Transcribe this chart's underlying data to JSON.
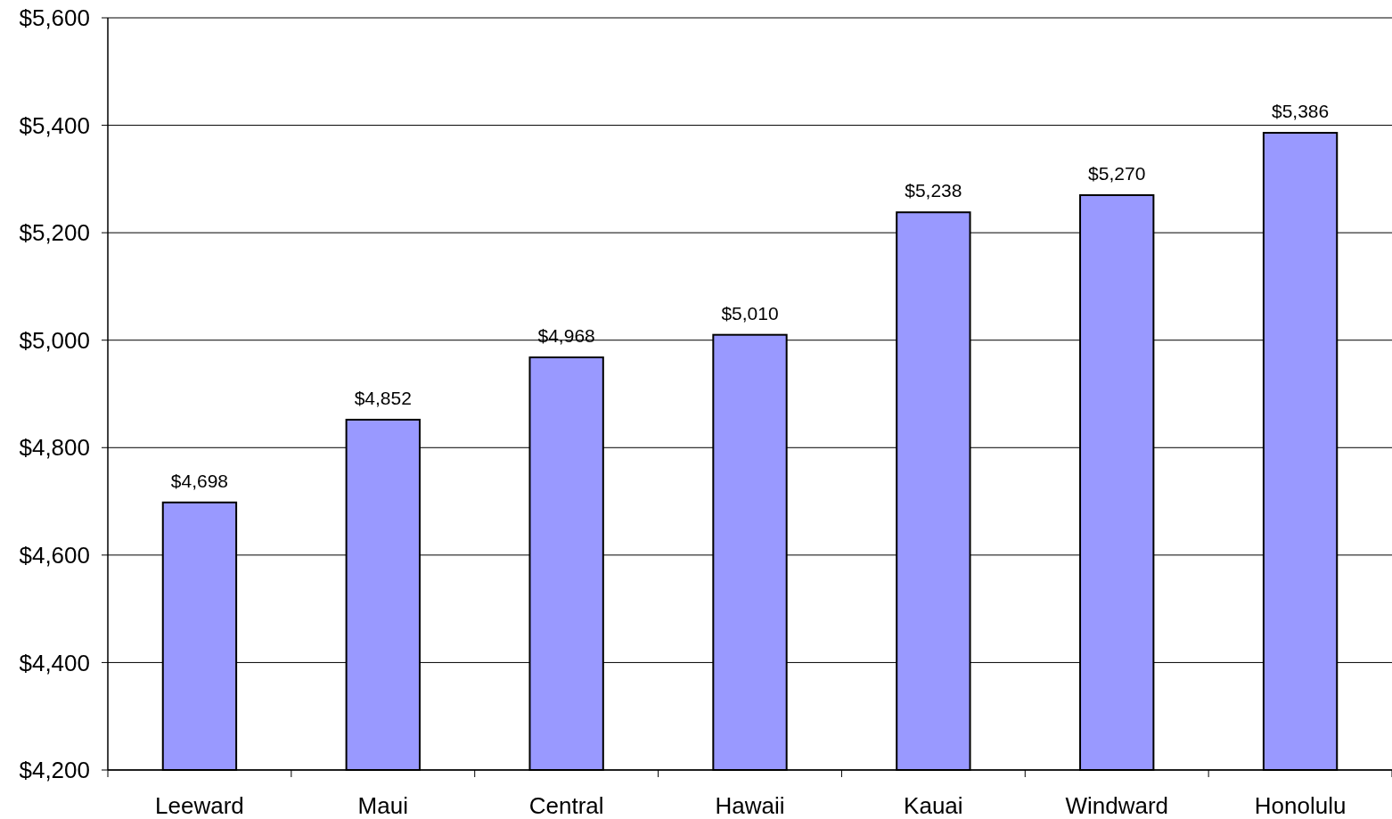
{
  "chart_data": {
    "type": "bar",
    "categories": [
      "Leeward",
      "Maui",
      "Central",
      "Hawaii",
      "Kauai",
      "Windward",
      "Honolulu"
    ],
    "values": [
      4698,
      4852,
      4968,
      5010,
      5238,
      5270,
      5386
    ],
    "value_labels": [
      "$4,698",
      "$4,852",
      "$4,968",
      "$5,010",
      "$5,238",
      "$5,270",
      "$5,386"
    ],
    "color": "#9999ff",
    "ylim": [
      4200,
      5600
    ],
    "yticks": [
      {
        "value": 4200,
        "label": "$4,200"
      },
      {
        "value": 4400,
        "label": "$4,400"
      },
      {
        "value": 4600,
        "label": "$4,600"
      },
      {
        "value": 4800,
        "label": "$4,800"
      },
      {
        "value": 5000,
        "label": "$5,000"
      },
      {
        "value": 5200,
        "label": "$5,200"
      },
      {
        "value": 5400,
        "label": "$5,400"
      },
      {
        "value": 5600,
        "label": "$5,600"
      }
    ],
    "grid": "y"
  }
}
